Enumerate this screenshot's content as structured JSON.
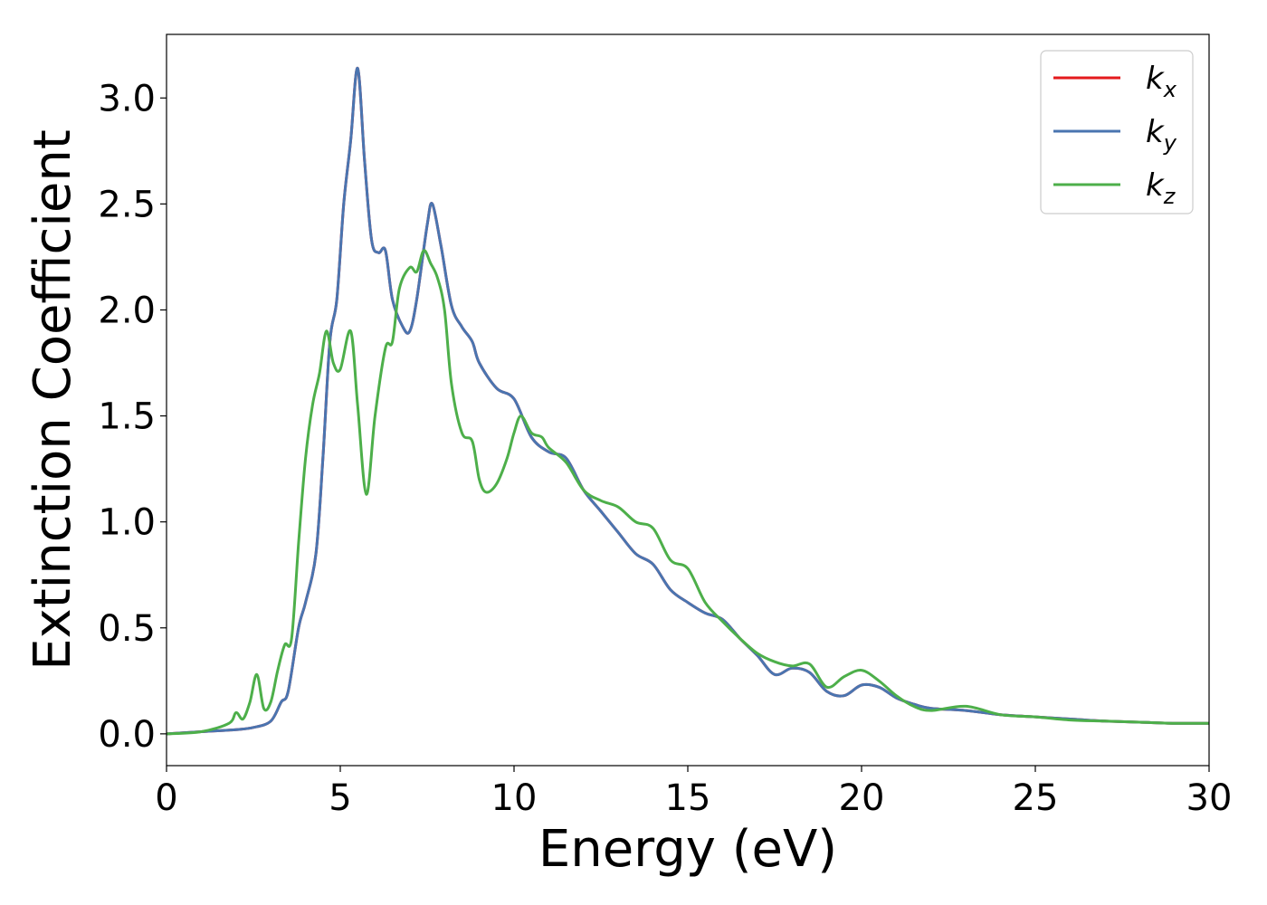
{
  "chart_data": {
    "type": "line",
    "xlabel": "Energy (eV)",
    "ylabel": "Extinction Coefficient",
    "xlim": [
      0,
      30
    ],
    "ylim": [
      -0.15,
      3.3
    ],
    "x_ticks": [
      "0",
      "5",
      "10",
      "15",
      "20",
      "25",
      "30"
    ],
    "y_ticks": [
      "0.0",
      "0.5",
      "1.0",
      "1.5",
      "2.0",
      "2.5",
      "3.0"
    ],
    "grid": false,
    "legend_position": "top-right",
    "series": [
      {
        "name": "k_x",
        "legend_base": "k",
        "legend_sub": "x",
        "color": "#e41a1c",
        "points": [
          [
            0,
            0.0
          ],
          [
            1,
            0.01
          ],
          [
            2,
            0.02
          ],
          [
            2.5,
            0.03
          ],
          [
            3,
            0.06
          ],
          [
            3.3,
            0.15
          ],
          [
            3.5,
            0.2
          ],
          [
            3.8,
            0.5
          ],
          [
            4,
            0.62
          ],
          [
            4.3,
            0.85
          ],
          [
            4.5,
            1.3
          ],
          [
            4.7,
            1.85
          ],
          [
            4.9,
            2.05
          ],
          [
            5.1,
            2.5
          ],
          [
            5.3,
            2.8
          ],
          [
            5.5,
            3.14
          ],
          [
            5.7,
            2.7
          ],
          [
            5.9,
            2.33
          ],
          [
            6.1,
            2.27
          ],
          [
            6.3,
            2.28
          ],
          [
            6.5,
            2.05
          ],
          [
            6.8,
            1.92
          ],
          [
            7,
            1.9
          ],
          [
            7.2,
            2.05
          ],
          [
            7.5,
            2.4
          ],
          [
            7.65,
            2.5
          ],
          [
            7.9,
            2.3
          ],
          [
            8.2,
            2.02
          ],
          [
            8.5,
            1.92
          ],
          [
            8.8,
            1.85
          ],
          [
            9,
            1.75
          ],
          [
            9.5,
            1.63
          ],
          [
            10,
            1.58
          ],
          [
            10.5,
            1.4
          ],
          [
            11,
            1.33
          ],
          [
            11.5,
            1.3
          ],
          [
            12,
            1.15
          ],
          [
            12.5,
            1.05
          ],
          [
            13,
            0.95
          ],
          [
            13.5,
            0.85
          ],
          [
            14,
            0.8
          ],
          [
            14.5,
            0.68
          ],
          [
            15,
            0.62
          ],
          [
            15.5,
            0.57
          ],
          [
            16,
            0.54
          ],
          [
            16.5,
            0.45
          ],
          [
            17,
            0.37
          ],
          [
            17.5,
            0.28
          ],
          [
            18,
            0.31
          ],
          [
            18.5,
            0.29
          ],
          [
            19,
            0.2
          ],
          [
            19.5,
            0.18
          ],
          [
            20,
            0.23
          ],
          [
            20.5,
            0.22
          ],
          [
            21,
            0.17
          ],
          [
            21.5,
            0.14
          ],
          [
            22,
            0.12
          ],
          [
            23,
            0.11
          ],
          [
            24,
            0.09
          ],
          [
            25,
            0.08
          ],
          [
            26,
            0.07
          ],
          [
            27,
            0.06
          ],
          [
            28,
            0.055
          ],
          [
            29,
            0.05
          ],
          [
            30,
            0.05
          ]
        ]
      },
      {
        "name": "k_y",
        "legend_base": "k",
        "legend_sub": "y",
        "color": "#4a75b0",
        "points": [
          [
            0,
            0.0
          ],
          [
            1,
            0.01
          ],
          [
            2,
            0.02
          ],
          [
            2.5,
            0.03
          ],
          [
            3,
            0.06
          ],
          [
            3.3,
            0.15
          ],
          [
            3.5,
            0.2
          ],
          [
            3.8,
            0.5
          ],
          [
            4,
            0.62
          ],
          [
            4.3,
            0.85
          ],
          [
            4.5,
            1.3
          ],
          [
            4.7,
            1.85
          ],
          [
            4.9,
            2.05
          ],
          [
            5.1,
            2.5
          ],
          [
            5.3,
            2.8
          ],
          [
            5.5,
            3.14
          ],
          [
            5.7,
            2.7
          ],
          [
            5.9,
            2.33
          ],
          [
            6.1,
            2.27
          ],
          [
            6.3,
            2.28
          ],
          [
            6.5,
            2.05
          ],
          [
            6.8,
            1.92
          ],
          [
            7,
            1.9
          ],
          [
            7.2,
            2.05
          ],
          [
            7.5,
            2.4
          ],
          [
            7.65,
            2.5
          ],
          [
            7.9,
            2.3
          ],
          [
            8.2,
            2.02
          ],
          [
            8.5,
            1.92
          ],
          [
            8.8,
            1.85
          ],
          [
            9,
            1.75
          ],
          [
            9.5,
            1.63
          ],
          [
            10,
            1.58
          ],
          [
            10.5,
            1.4
          ],
          [
            11,
            1.33
          ],
          [
            11.5,
            1.3
          ],
          [
            12,
            1.15
          ],
          [
            12.5,
            1.05
          ],
          [
            13,
            0.95
          ],
          [
            13.5,
            0.85
          ],
          [
            14,
            0.8
          ],
          [
            14.5,
            0.68
          ],
          [
            15,
            0.62
          ],
          [
            15.5,
            0.57
          ],
          [
            16,
            0.54
          ],
          [
            16.5,
            0.45
          ],
          [
            17,
            0.37
          ],
          [
            17.5,
            0.28
          ],
          [
            18,
            0.31
          ],
          [
            18.5,
            0.29
          ],
          [
            19,
            0.2
          ],
          [
            19.5,
            0.18
          ],
          [
            20,
            0.23
          ],
          [
            20.5,
            0.22
          ],
          [
            21,
            0.17
          ],
          [
            21.5,
            0.14
          ],
          [
            22,
            0.12
          ],
          [
            23,
            0.11
          ],
          [
            24,
            0.09
          ],
          [
            25,
            0.08
          ],
          [
            26,
            0.07
          ],
          [
            27,
            0.06
          ],
          [
            28,
            0.055
          ],
          [
            29,
            0.05
          ],
          [
            30,
            0.05
          ]
        ]
      },
      {
        "name": "k_z",
        "legend_base": "k",
        "legend_sub": "z",
        "color": "#4daf4a",
        "points": [
          [
            0,
            0.0
          ],
          [
            1,
            0.01
          ],
          [
            1.8,
            0.05
          ],
          [
            2,
            0.1
          ],
          [
            2.2,
            0.07
          ],
          [
            2.4,
            0.15
          ],
          [
            2.6,
            0.28
          ],
          [
            2.8,
            0.12
          ],
          [
            3,
            0.15
          ],
          [
            3.2,
            0.3
          ],
          [
            3.4,
            0.42
          ],
          [
            3.6,
            0.45
          ],
          [
            3.8,
            0.9
          ],
          [
            4,
            1.3
          ],
          [
            4.2,
            1.55
          ],
          [
            4.4,
            1.7
          ],
          [
            4.6,
            1.9
          ],
          [
            4.8,
            1.75
          ],
          [
            5,
            1.72
          ],
          [
            5.3,
            1.9
          ],
          [
            5.5,
            1.55
          ],
          [
            5.75,
            1.13
          ],
          [
            6,
            1.5
          ],
          [
            6.3,
            1.82
          ],
          [
            6.5,
            1.85
          ],
          [
            6.7,
            2.1
          ],
          [
            7,
            2.2
          ],
          [
            7.2,
            2.18
          ],
          [
            7.4,
            2.28
          ],
          [
            7.6,
            2.22
          ],
          [
            7.8,
            2.15
          ],
          [
            8,
            2.0
          ],
          [
            8.2,
            1.65
          ],
          [
            8.5,
            1.42
          ],
          [
            8.8,
            1.38
          ],
          [
            9,
            1.2
          ],
          [
            9.2,
            1.14
          ],
          [
            9.5,
            1.18
          ],
          [
            9.8,
            1.3
          ],
          [
            10,
            1.42
          ],
          [
            10.2,
            1.5
          ],
          [
            10.5,
            1.42
          ],
          [
            10.8,
            1.4
          ],
          [
            11,
            1.35
          ],
          [
            11.5,
            1.28
          ],
          [
            12,
            1.15
          ],
          [
            12.5,
            1.1
          ],
          [
            13,
            1.07
          ],
          [
            13.5,
            1.0
          ],
          [
            14,
            0.97
          ],
          [
            14.5,
            0.82
          ],
          [
            15,
            0.78
          ],
          [
            15.5,
            0.62
          ],
          [
            16,
            0.53
          ],
          [
            16.5,
            0.45
          ],
          [
            17,
            0.38
          ],
          [
            17.5,
            0.34
          ],
          [
            18,
            0.32
          ],
          [
            18.5,
            0.33
          ],
          [
            19,
            0.22
          ],
          [
            19.5,
            0.27
          ],
          [
            20,
            0.3
          ],
          [
            20.5,
            0.25
          ],
          [
            21,
            0.18
          ],
          [
            21.5,
            0.13
          ],
          [
            22,
            0.11
          ],
          [
            23,
            0.13
          ],
          [
            24,
            0.09
          ],
          [
            25,
            0.08
          ],
          [
            26,
            0.065
          ],
          [
            27,
            0.06
          ],
          [
            28,
            0.055
          ],
          [
            29,
            0.05
          ],
          [
            30,
            0.05
          ]
        ]
      }
    ]
  }
}
